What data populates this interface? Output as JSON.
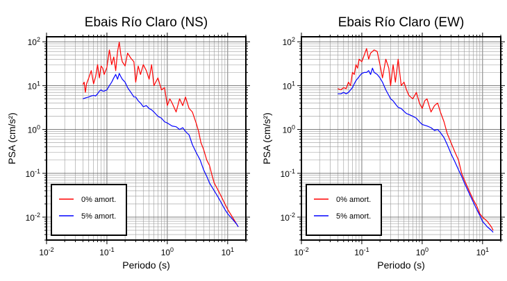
{
  "chart_data": [
    {
      "type": "line",
      "title": "Ebais Río Claro (NS)",
      "xlabel": "Periodo (s)",
      "ylabel": "PSA (cm/s²)",
      "xscale": "log",
      "yscale": "log",
      "xlim": [
        0.01,
        20
      ],
      "ylim": [
        0.003,
        130
      ],
      "xticks": [
        0.01,
        0.1,
        1,
        10
      ],
      "yticks": [
        0.01,
        0.1,
        1,
        10,
        100
      ],
      "grid": true,
      "legend": "bottom-left",
      "series": [
        {
          "name": "0% amort.",
          "color": "#ff0000",
          "x": [
            0.04,
            0.042,
            0.044,
            0.046,
            0.05,
            0.055,
            0.06,
            0.065,
            0.07,
            0.075,
            0.08,
            0.085,
            0.09,
            0.1,
            0.11,
            0.12,
            0.13,
            0.14,
            0.15,
            0.16,
            0.17,
            0.18,
            0.2,
            0.22,
            0.25,
            0.28,
            0.3,
            0.33,
            0.36,
            0.4,
            0.45,
            0.5,
            0.55,
            0.6,
            0.7,
            0.8,
            0.9,
            1.0,
            1.1,
            1.2,
            1.4,
            1.6,
            1.8,
            2.0,
            2.3,
            2.6,
            3.0,
            3.3,
            3.6,
            4.0,
            4.5,
            5.0,
            5.5,
            6.0,
            7.0,
            8.0,
            9.0,
            10.0,
            12.0,
            14.0,
            15.0
          ],
          "y": [
            10.5,
            12,
            7,
            11,
            15,
            22,
            11,
            16,
            30,
            15,
            28,
            25,
            18,
            26,
            65,
            30,
            45,
            22,
            60,
            98,
            50,
            35,
            28,
            55,
            42,
            35,
            12,
            28,
            18,
            30,
            22,
            14,
            30,
            10,
            15,
            8,
            9,
            3.5,
            5,
            4,
            2.5,
            5,
            3.5,
            5.5,
            3,
            2.5,
            1.4,
            0.9,
            0.5,
            0.35,
            0.2,
            0.15,
            0.09,
            0.06,
            0.04,
            0.028,
            0.02,
            0.015,
            0.01,
            0.007,
            0.006
          ]
        },
        {
          "name": "5% amort.",
          "color": "#0000ff",
          "x": [
            0.04,
            0.045,
            0.05,
            0.055,
            0.06,
            0.065,
            0.07,
            0.075,
            0.08,
            0.085,
            0.09,
            0.1,
            0.11,
            0.12,
            0.13,
            0.14,
            0.15,
            0.16,
            0.17,
            0.18,
            0.2,
            0.22,
            0.25,
            0.28,
            0.3,
            0.33,
            0.36,
            0.4,
            0.45,
            0.5,
            0.55,
            0.6,
            0.7,
            0.8,
            0.9,
            1.0,
            1.2,
            1.4,
            1.6,
            1.8,
            2.0,
            2.3,
            2.6,
            3.0,
            3.5,
            4.0,
            4.5,
            5.0,
            6.0,
            7.0,
            8.0,
            9.0,
            10.0,
            12.0,
            14.0,
            15.0
          ],
          "y": [
            5,
            5.3,
            5.5,
            5.8,
            6,
            5.8,
            6.5,
            7.5,
            8,
            7.5,
            7.5,
            8,
            10,
            12,
            15,
            18,
            14,
            19,
            16,
            14,
            12,
            9,
            7,
            5.5,
            5.5,
            4.5,
            4,
            3.3,
            3.5,
            3,
            2.8,
            2.5,
            2,
            1.8,
            1.5,
            1.4,
            1.2,
            1.15,
            1.0,
            1.1,
            0.9,
            0.75,
            0.45,
            0.3,
            0.2,
            0.12,
            0.085,
            0.06,
            0.04,
            0.028,
            0.02,
            0.015,
            0.012,
            0.009,
            0.007,
            0.006
          ]
        }
      ]
    },
    {
      "type": "line",
      "title": "Ebais Río Claro (EW)",
      "xlabel": "Periodo (s)",
      "ylabel": "PSA (cm/s²)",
      "xscale": "log",
      "yscale": "log",
      "xlim": [
        0.01,
        20
      ],
      "ylim": [
        0.003,
        130
      ],
      "xticks": [
        0.01,
        0.1,
        1,
        10
      ],
      "yticks": [
        0.01,
        0.1,
        1,
        10,
        100
      ],
      "grid": true,
      "legend": "bottom-left",
      "series": [
        {
          "name": "0% amort.",
          "color": "#ff0000",
          "x": [
            0.04,
            0.045,
            0.05,
            0.055,
            0.06,
            0.065,
            0.07,
            0.075,
            0.08,
            0.085,
            0.09,
            0.1,
            0.11,
            0.12,
            0.13,
            0.14,
            0.15,
            0.16,
            0.18,
            0.2,
            0.22,
            0.25,
            0.28,
            0.3,
            0.33,
            0.36,
            0.4,
            0.45,
            0.5,
            0.55,
            0.6,
            0.7,
            0.8,
            0.9,
            1.0,
            1.1,
            1.2,
            1.4,
            1.6,
            1.8,
            2.0,
            2.3,
            2.6,
            3.0,
            3.5,
            4.0,
            4.5,
            5.0,
            6.0,
            7.0,
            8.0,
            9.0,
            10.0,
            12.0,
            14.0,
            15.0
          ],
          "y": [
            8.5,
            8,
            9,
            8.5,
            12,
            10,
            20,
            18,
            30,
            25,
            40,
            35,
            50,
            70,
            40,
            55,
            60,
            65,
            60,
            30,
            15,
            40,
            25,
            10,
            30,
            12,
            40,
            10,
            12,
            8,
            6,
            5,
            7,
            4,
            3,
            4.5,
            5,
            2.5,
            3.5,
            4,
            2.5,
            1.5,
            0.8,
            0.5,
            0.3,
            0.2,
            0.1,
            0.07,
            0.04,
            0.025,
            0.018,
            0.012,
            0.01,
            0.008,
            0.006,
            0.005
          ]
        },
        {
          "name": "5% amort.",
          "color": "#0000ff",
          "x": [
            0.04,
            0.045,
            0.05,
            0.055,
            0.06,
            0.065,
            0.07,
            0.075,
            0.08,
            0.09,
            0.1,
            0.11,
            0.12,
            0.13,
            0.14,
            0.15,
            0.16,
            0.18,
            0.2,
            0.22,
            0.25,
            0.28,
            0.3,
            0.33,
            0.36,
            0.4,
            0.45,
            0.5,
            0.55,
            0.6,
            0.7,
            0.8,
            0.9,
            1.0,
            1.2,
            1.4,
            1.6,
            1.8,
            2.0,
            2.3,
            2.6,
            3.0,
            3.5,
            4.0,
            4.5,
            5.0,
            6.0,
            7.0,
            8.0,
            9.0,
            10.0,
            12.0,
            14.0,
            15.0
          ],
          "y": [
            6.5,
            6.5,
            7,
            6.5,
            7,
            8,
            9,
            11,
            13,
            16,
            19,
            20,
            20,
            22,
            18,
            25,
            20,
            18,
            15,
            12,
            8,
            6,
            5,
            4.5,
            3.8,
            3.2,
            3,
            2.6,
            2.3,
            2.2,
            2,
            1.8,
            1.5,
            1.3,
            1.2,
            1.1,
            0.95,
            1.0,
            0.85,
            0.65,
            0.45,
            0.28,
            0.18,
            0.12,
            0.085,
            0.06,
            0.035,
            0.022,
            0.015,
            0.011,
            0.008,
            0.006,
            0.005,
            0.0045
          ]
        }
      ]
    }
  ]
}
